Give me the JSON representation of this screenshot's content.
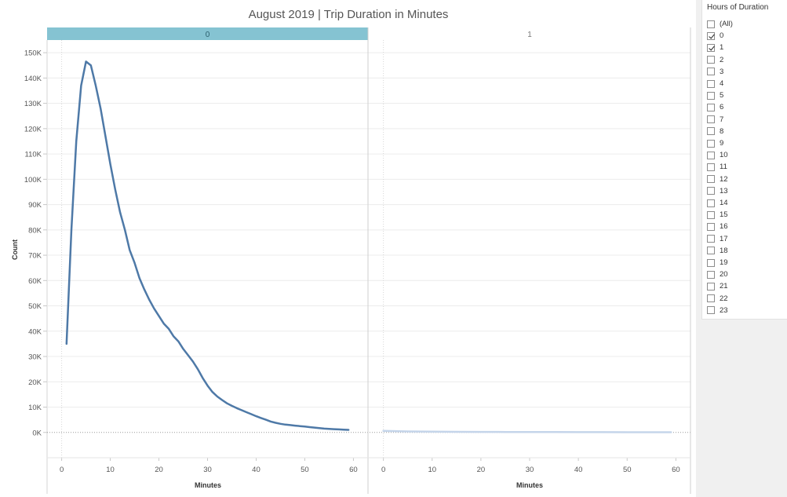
{
  "title": "August 2019 | Trip Duration in Minutes",
  "colors": {
    "line_active": "#4e79a7",
    "line_faded": "#c5d5ea",
    "header_active": "#85c3d2",
    "grid": "#ececec"
  },
  "chart_data": {
    "type": "line",
    "title": "August 2019 | Trip Duration in Minutes",
    "xlabel": "Minutes",
    "ylabel": "Count",
    "xlim": [
      -3,
      63
    ],
    "ylim": [
      -10000,
      155000
    ],
    "x_ticks": [
      0,
      10,
      20,
      30,
      40,
      50,
      60
    ],
    "y_ticks": [
      0,
      10000,
      20000,
      30000,
      40000,
      50000,
      60000,
      70000,
      80000,
      90000,
      100000,
      110000,
      120000,
      130000,
      140000,
      150000
    ],
    "y_tick_labels": [
      "0K",
      "10K",
      "20K",
      "30K",
      "40K",
      "50K",
      "60K",
      "70K",
      "80K",
      "90K",
      "100K",
      "110K",
      "120K",
      "130K",
      "140K",
      "150K"
    ],
    "panels": [
      {
        "label": "0",
        "selected": true,
        "x": [
          1,
          2,
          3,
          4,
          5,
          6,
          7,
          8,
          9,
          10,
          11,
          12,
          13,
          14,
          15,
          16,
          17,
          18,
          19,
          20,
          21,
          22,
          23,
          24,
          25,
          26,
          27,
          28,
          29,
          30,
          31,
          32,
          33,
          34,
          35,
          36,
          37,
          38,
          39,
          40,
          41,
          42,
          43,
          44,
          45,
          46,
          47,
          48,
          49,
          50,
          51,
          52,
          53,
          54,
          55,
          56,
          57,
          58,
          59
        ],
        "y": [
          35000,
          80000,
          115000,
          137000,
          146500,
          145000,
          137000,
          128000,
          117000,
          106000,
          96000,
          87000,
          80000,
          72000,
          67000,
          61000,
          56500,
          52500,
          49000,
          46000,
          43000,
          41000,
          38000,
          36000,
          33000,
          30500,
          28000,
          25000,
          21500,
          18500,
          16000,
          14200,
          12800,
          11500,
          10500,
          9600,
          8800,
          8000,
          7200,
          6400,
          5700,
          5000,
          4300,
          3800,
          3400,
          3100,
          2900,
          2700,
          2500,
          2300,
          2100,
          1900,
          1700,
          1500,
          1400,
          1300,
          1200,
          1100,
          1000
        ]
      },
      {
        "label": "1",
        "selected": false,
        "x": [
          0,
          5,
          10,
          15,
          20,
          25,
          30,
          35,
          40,
          45,
          50,
          55,
          59
        ],
        "y": [
          600,
          400,
          300,
          250,
          200,
          180,
          150,
          130,
          120,
          100,
          90,
          80,
          70
        ]
      }
    ]
  },
  "filter": {
    "title": "Hours of Duration",
    "options": [
      {
        "label": "(All)",
        "checked": false
      },
      {
        "label": "0",
        "checked": true
      },
      {
        "label": "1",
        "checked": true
      },
      {
        "label": "2",
        "checked": false
      },
      {
        "label": "3",
        "checked": false
      },
      {
        "label": "4",
        "checked": false
      },
      {
        "label": "5",
        "checked": false
      },
      {
        "label": "6",
        "checked": false
      },
      {
        "label": "7",
        "checked": false
      },
      {
        "label": "8",
        "checked": false
      },
      {
        "label": "9",
        "checked": false
      },
      {
        "label": "10",
        "checked": false
      },
      {
        "label": "11",
        "checked": false
      },
      {
        "label": "12",
        "checked": false
      },
      {
        "label": "13",
        "checked": false
      },
      {
        "label": "14",
        "checked": false
      },
      {
        "label": "15",
        "checked": false
      },
      {
        "label": "16",
        "checked": false
      },
      {
        "label": "17",
        "checked": false
      },
      {
        "label": "18",
        "checked": false
      },
      {
        "label": "19",
        "checked": false
      },
      {
        "label": "20",
        "checked": false
      },
      {
        "label": "21",
        "checked": false
      },
      {
        "label": "22",
        "checked": false
      },
      {
        "label": "23",
        "checked": false
      }
    ]
  }
}
